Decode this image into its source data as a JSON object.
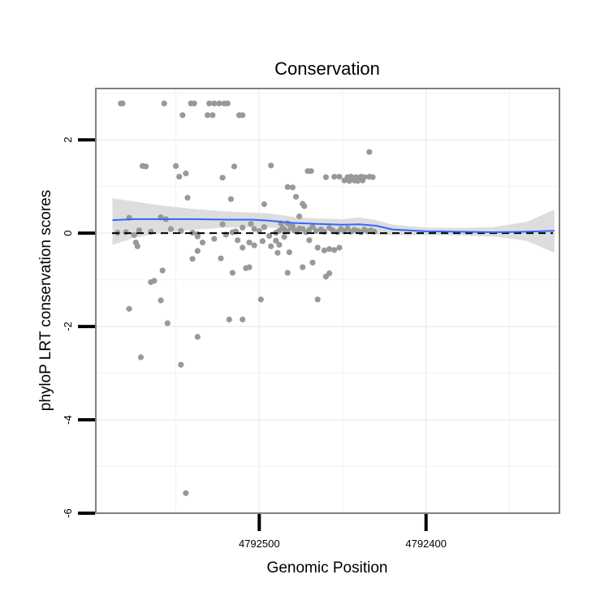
{
  "chart_data": {
    "type": "scatter",
    "title": "Conservation",
    "xlabel": "Genomic Position",
    "ylabel": "phyloP LRT conservation scores",
    "x_reversed": true,
    "xlim": [
      4792598,
      4792320
    ],
    "ylim": [
      -6,
      3.1
    ],
    "x_ticks": [
      4792500,
      4792400
    ],
    "x_tick_labels": [
      "4792500",
      "4792400"
    ],
    "y_ticks": [
      2,
      0,
      -2,
      -4,
      -6
    ],
    "y_tick_labels": [
      "2",
      "0",
      "-2",
      "-4",
      "-6"
    ],
    "grid": true,
    "reference_line": {
      "y": 0,
      "style": "dashed"
    },
    "colors": {
      "points": "#999999",
      "smooth": "#3366ff",
      "ribbon": "#d9d9d9",
      "panel_border": "#808080",
      "grid": "#f2f2f2"
    },
    "points": [
      [
        4792583,
        2.78
      ],
      [
        4792582,
        2.78
      ],
      [
        4792557,
        2.78
      ],
      [
        4792541,
        2.78
      ],
      [
        4792539,
        2.78
      ],
      [
        4792530,
        2.78
      ],
      [
        4792527,
        2.78
      ],
      [
        4792524,
        2.78
      ],
      [
        4792521,
        2.78
      ],
      [
        4792519,
        2.78
      ],
      [
        4792546,
        2.53
      ],
      [
        4792531,
        2.53
      ],
      [
        4792528,
        2.53
      ],
      [
        4792512,
        2.53
      ],
      [
        4792510,
        2.53
      ],
      [
        4792570,
        1.44
      ],
      [
        4792568,
        1.43
      ],
      [
        4792550,
        1.44
      ],
      [
        4792515,
        1.43
      ],
      [
        4792493,
        1.45
      ],
      [
        4792544,
        1.28
      ],
      [
        4792548,
        1.21
      ],
      [
        4792522,
        1.19
      ],
      [
        4792471,
        1.33
      ],
      [
        4792469,
        1.33
      ],
      [
        4792460,
        1.2
      ],
      [
        4792455,
        1.21
      ],
      [
        4792452,
        1.21
      ],
      [
        4792447,
        1.2
      ],
      [
        4792445,
        1.21
      ],
      [
        4792442,
        1.2
      ],
      [
        4792439,
        1.21
      ],
      [
        4792437,
        1.2
      ],
      [
        4792434,
        1.21
      ],
      [
        4792432,
        1.2
      ],
      [
        4792449,
        1.13
      ],
      [
        4792446,
        1.12
      ],
      [
        4792443,
        1.13
      ],
      [
        4792441,
        1.12
      ],
      [
        4792438,
        1.13
      ],
      [
        4792434,
        1.74
      ],
      [
        4792483,
        0.99
      ],
      [
        4792480,
        0.98
      ],
      [
        4792478,
        0.78
      ],
      [
        4792473,
        0.58
      ],
      [
        4792474,
        0.63
      ],
      [
        4792476,
        0.36
      ],
      [
        4792543,
        0.76
      ],
      [
        4792517,
        0.73
      ],
      [
        4792497,
        0.62
      ],
      [
        4792578,
        0.33
      ],
      [
        4792556,
        0.3
      ],
      [
        4792559,
        0.34
      ],
      [
        4792522,
        0.19
      ],
      [
        4792505,
        0.2
      ],
      [
        4792487,
        0.21
      ],
      [
        4792486,
        0.11
      ],
      [
        4792483,
        0.21
      ],
      [
        4792480,
        0.15
      ],
      [
        4792476,
        0.1
      ],
      [
        4792585,
        0.01
      ],
      [
        4792580,
        0.02
      ],
      [
        4792575,
        -0.04
      ],
      [
        4792572,
        0.06
      ],
      [
        4792565,
        0.03
      ],
      [
        4792553,
        0.09
      ],
      [
        4792547,
        0.05
      ],
      [
        4792540,
        0.01
      ],
      [
        4792537,
        -0.02
      ],
      [
        4792520,
        -0.03
      ],
      [
        4792516,
        0.02
      ],
      [
        4792514,
        0.04
      ],
      [
        4792510,
        0.12
      ],
      [
        4792503,
        0.09
      ],
      [
        4792500,
        0.05
      ],
      [
        4792497,
        0.13
      ],
      [
        4792494,
        -0.06
      ],
      [
        4792490,
        0.01
      ],
      [
        4792488,
        0.05
      ],
      [
        4792485,
        0.08
      ],
      [
        4792483,
        0.04
      ],
      [
        4792481,
        0.12
      ],
      [
        4792479,
        0.06
      ],
      [
        4792477,
        0.03
      ],
      [
        4792474,
        0.09
      ],
      [
        4792472,
        0.02
      ],
      [
        4792470,
        0.07
      ],
      [
        4792468,
        0.14
      ],
      [
        4792466,
        0.05
      ],
      [
        4792463,
        0.08
      ],
      [
        4792461,
        0.03
      ],
      [
        4792458,
        0.11
      ],
      [
        4792456,
        0.06
      ],
      [
        4792453,
        0.02
      ],
      [
        4792451,
        0.09
      ],
      [
        4792449,
        0.04
      ],
      [
        4792447,
        0.1
      ],
      [
        4792445,
        0.03
      ],
      [
        4792443,
        0.07
      ],
      [
        4792441,
        0.05
      ],
      [
        4792439,
        0.02
      ],
      [
        4792437,
        0.08
      ],
      [
        4792435,
        0.04
      ],
      [
        4792433,
        0.06
      ],
      [
        4792431,
        0.03
      ],
      [
        4792574,
        -0.2
      ],
      [
        4792573,
        -0.28
      ],
      [
        4792537,
        -0.07
      ],
      [
        4792534,
        -0.2
      ],
      [
        4792527,
        -0.12
      ],
      [
        4792513,
        -0.15
      ],
      [
        4792510,
        -0.31
      ],
      [
        4792506,
        -0.2
      ],
      [
        4792503,
        -0.26
      ],
      [
        4792498,
        -0.17
      ],
      [
        4792493,
        -0.28
      ],
      [
        4792490,
        -0.16
      ],
      [
        4792488,
        -0.25
      ],
      [
        4792485,
        -0.08
      ],
      [
        4792470,
        -0.15
      ],
      [
        4792465,
        -0.31
      ],
      [
        4792461,
        -0.37
      ],
      [
        4792458,
        -0.34
      ],
      [
        4792455,
        -0.36
      ],
      [
        4792452,
        -0.31
      ],
      [
        4792540,
        -0.55
      ],
      [
        4792537,
        -0.38
      ],
      [
        4792523,
        -0.54
      ],
      [
        4792489,
        -0.42
      ],
      [
        4792482,
        -0.41
      ],
      [
        4792468,
        -0.63
      ],
      [
        4792558,
        -0.8
      ],
      [
        4792563,
        -1.02
      ],
      [
        4792565,
        -1.05
      ],
      [
        4792516,
        -0.85
      ],
      [
        4792508,
        -0.75
      ],
      [
        4792506,
        -0.73
      ],
      [
        4792483,
        -0.85
      ],
      [
        4792474,
        -0.73
      ],
      [
        4792460,
        -0.93
      ],
      [
        4792458,
        -0.86
      ],
      [
        4792559,
        -1.44
      ],
      [
        4792499,
        -1.42
      ],
      [
        4792465,
        -1.42
      ],
      [
        4792578,
        -1.62
      ],
      [
        4792518,
        -1.85
      ],
      [
        4792510,
        -1.85
      ],
      [
        4792555,
        -1.93
      ],
      [
        4792537,
        -2.22
      ],
      [
        4792571,
        -2.66
      ],
      [
        4792547,
        -2.82
      ],
      [
        4792544,
        -5.57
      ]
    ],
    "smooth": {
      "x": [
        4792588,
        4792575,
        4792560,
        4792540,
        4792520,
        4792505,
        4792495,
        4792480,
        4792465,
        4792450,
        4792440,
        4792430,
        4792420,
        4792400,
        4792380,
        4792360,
        4792340,
        4792323
      ],
      "y": [
        0.28,
        0.3,
        0.3,
        0.3,
        0.29,
        0.29,
        0.27,
        0.22,
        0.2,
        0.18,
        0.19,
        0.16,
        0.08,
        0.04,
        0.03,
        0.02,
        0.03,
        0.05
      ],
      "lower": [
        -0.25,
        -0.1,
        0.0,
        0.07,
        0.12,
        0.13,
        0.12,
        0.1,
        0.08,
        0.06,
        0.02,
        -0.03,
        -0.04,
        -0.04,
        -0.05,
        -0.07,
        -0.16,
        -0.42
      ],
      "upper": [
        0.75,
        0.68,
        0.6,
        0.52,
        0.47,
        0.44,
        0.43,
        0.35,
        0.31,
        0.3,
        0.34,
        0.28,
        0.18,
        0.12,
        0.11,
        0.13,
        0.24,
        0.5
      ]
    }
  }
}
